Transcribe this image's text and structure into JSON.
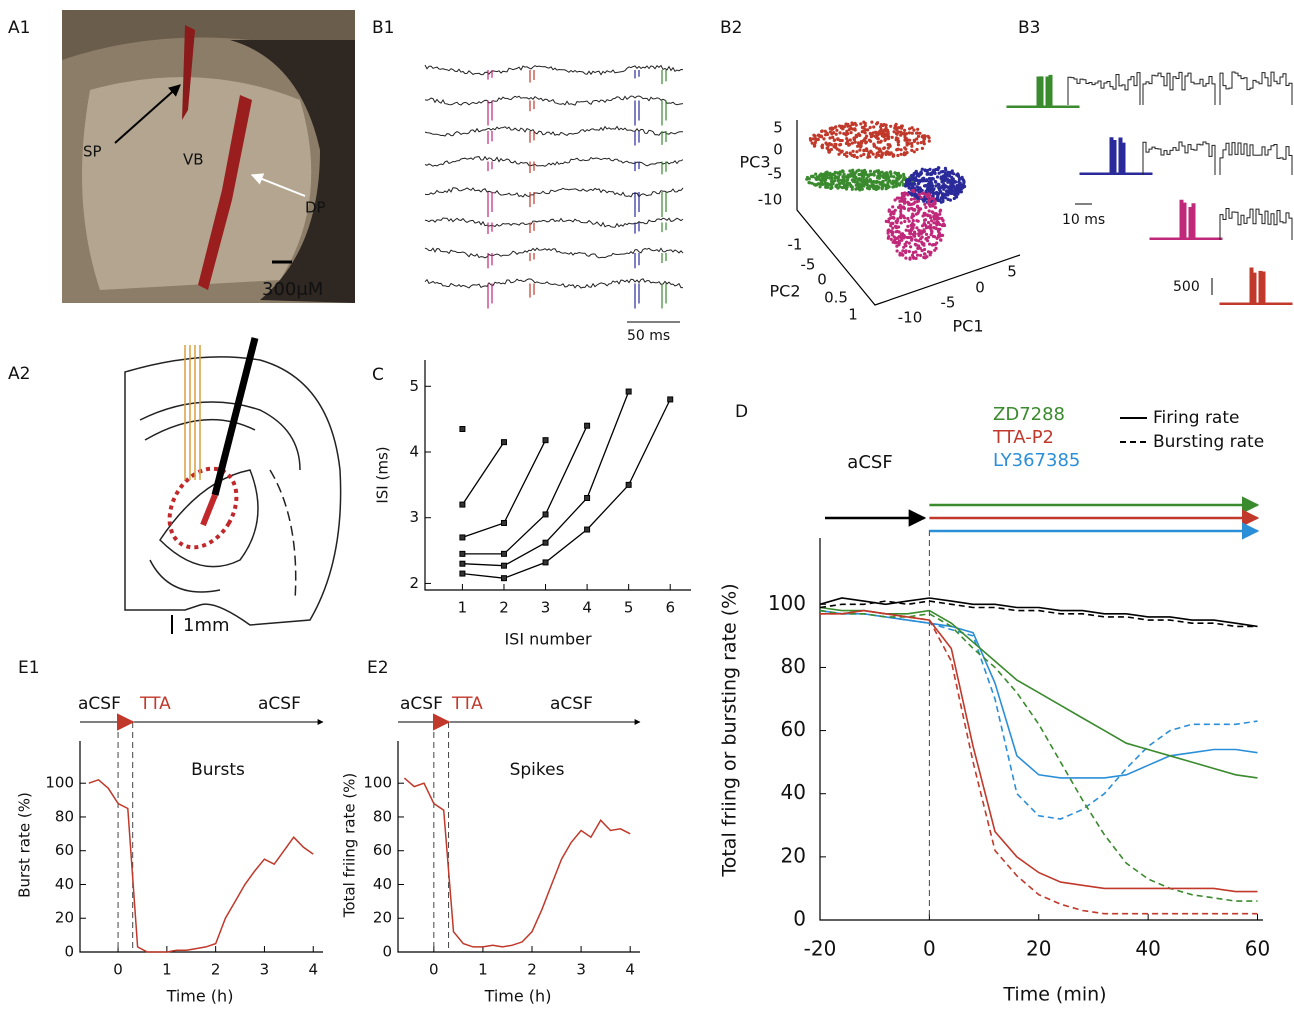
{
  "panels": {
    "a1": {
      "label": "A1",
      "annotations": [
        "SP",
        "VB",
        "DP"
      ],
      "scale": "300μM"
    },
    "a2": {
      "label": "A2",
      "scale": "1mm"
    },
    "b1": {
      "label": "B1",
      "scale": "50 ms"
    },
    "b2": {
      "label": "B2",
      "axis_labels": [
        "PC1",
        "PC2",
        "PC3"
      ],
      "pc1_ticks": [
        "-10",
        "-5",
        "0",
        "5"
      ],
      "pc2_ticks": [
        "-1",
        "-5",
        "0",
        "0.5",
        "1"
      ],
      "pc3_ticks": [
        "5",
        "0",
        "-5",
        "-10"
      ]
    },
    "b3": {
      "label": "B3",
      "time_scale": "10 ms",
      "count_scale": "500"
    }
  },
  "chart_data": [
    {
      "type": "line",
      "label": "C",
      "xlabel": "ISI number",
      "ylabel": "ISI (ms)",
      "color": "#000000",
      "x": [
        1,
        2,
        3,
        4,
        5,
        6
      ],
      "series": [
        {
          "values": [
            4.35,
            null,
            null,
            null,
            null,
            null
          ]
        },
        {
          "values": [
            3.2,
            4.15,
            null,
            null,
            null,
            null
          ]
        },
        {
          "values": [
            2.7,
            2.92,
            4.18,
            null,
            null,
            null
          ]
        },
        {
          "values": [
            2.45,
            2.45,
            3.05,
            4.4,
            null,
            null
          ]
        },
        {
          "values": [
            2.3,
            2.27,
            2.62,
            3.3,
            4.92,
            null
          ]
        },
        {
          "values": [
            2.15,
            2.08,
            2.32,
            2.82,
            3.5,
            4.8
          ]
        }
      ],
      "xlim": [
        0.1,
        6.5
      ],
      "ylim": [
        1.9,
        5.4
      ],
      "xticks": [
        1,
        2,
        3,
        4,
        5,
        6
      ],
      "yticks": [
        2,
        3,
        4,
        5
      ]
    },
    {
      "type": "line",
      "label": "D",
      "xlabel": "Time (min)",
      "ylabel": "Total friing or bursting rate (%)",
      "line_styles": [
        "Firing rate",
        "Bursting rate"
      ],
      "vlines": [
        0
      ],
      "x": [
        -20,
        -16,
        -12,
        -8,
        -4,
        0,
        4,
        8,
        12,
        16,
        20,
        24,
        28,
        32,
        36,
        40,
        44,
        48,
        52,
        56,
        60
      ],
      "series": [
        {
          "name": "LY367385",
          "color": "#2b8fd8",
          "firing": [
            98,
            97,
            97,
            96,
            95,
            94,
            93,
            91,
            75,
            52,
            46,
            45,
            45,
            45,
            46,
            49,
            52,
            53,
            54,
            54,
            53
          ],
          "bursting": [
            98,
            97,
            97,
            96,
            95,
            94,
            92,
            90,
            70,
            40,
            33,
            32,
            35,
            40,
            48,
            55,
            60,
            62,
            62,
            62,
            63
          ]
        },
        {
          "name": "ZD7288",
          "color": "#3a8a2e",
          "firing": [
            99,
            98,
            98,
            97,
            97,
            98,
            94,
            88,
            82,
            76,
            72,
            68,
            64,
            60,
            56,
            54,
            52,
            50,
            48,
            46,
            45
          ],
          "bursting": [
            98,
            97,
            97,
            96,
            96,
            97,
            93,
            86,
            80,
            72,
            62,
            50,
            38,
            27,
            18,
            13,
            10,
            8,
            7,
            6,
            6
          ]
        },
        {
          "name": "TTA-P2",
          "color": "#c0392b",
          "firing": [
            97,
            97,
            98,
            97,
            96,
            95,
            86,
            55,
            28,
            20,
            15,
            12,
            11,
            10,
            10,
            10,
            10,
            10,
            10,
            9,
            9
          ],
          "bursting": [
            97,
            97,
            98,
            97,
            96,
            95,
            82,
            50,
            22,
            14,
            8,
            5,
            3,
            2,
            2,
            2,
            2,
            2,
            2,
            2,
            2
          ]
        },
        {
          "name": "aCSF",
          "color": "#000000",
          "firing": [
            100,
            102,
            101,
            100,
            101,
            102,
            101,
            100,
            100,
            99,
            99,
            98,
            98,
            97,
            97,
            96,
            96,
            95,
            95,
            94,
            93
          ],
          "bursting": [
            99,
            100,
            100,
            101,
            100,
            101,
            100,
            99,
            99,
            98,
            98,
            97,
            97,
            96,
            96,
            95,
            95,
            94,
            94,
            93,
            93
          ]
        }
      ],
      "xlim": [
        -20,
        61
      ],
      "ylim": [
        0,
        121
      ],
      "xticks": [
        -20,
        0,
        20,
        40,
        60
      ],
      "yticks": [
        0,
        20,
        40,
        60,
        80,
        100
      ]
    },
    {
      "type": "line",
      "label": "E1",
      "xlabel": "Time (h)",
      "ylabel": "Burst rate (%)",
      "annotation": "Bursts",
      "phases": [
        "aCSF",
        "TTA",
        "aCSF"
      ],
      "vlines": [
        0,
        0.3
      ],
      "color": "#c0392b",
      "x": [
        -0.6,
        -0.4,
        -0.2,
        0,
        0.2,
        0.4,
        0.6,
        0.8,
        1,
        1.2,
        1.4,
        1.6,
        1.8,
        2,
        2.2,
        2.4,
        2.6,
        2.8,
        3,
        3.2,
        3.4,
        3.6,
        3.8,
        4
      ],
      "values": [
        100,
        102,
        97,
        88,
        85,
        3,
        0,
        0,
        0,
        1,
        1,
        2,
        3,
        5,
        20,
        30,
        40,
        48,
        55,
        52,
        60,
        68,
        62,
        58
      ],
      "xlim": [
        -0.78,
        4.2
      ],
      "ylim": [
        0,
        125
      ],
      "xticks": [
        0,
        1,
        2,
        3,
        4
      ],
      "yticks": [
        0,
        20,
        40,
        60,
        80,
        100
      ]
    },
    {
      "type": "line",
      "label": "E2",
      "xlabel": "Time (h)",
      "ylabel": "Total friing rate (%)",
      "annotation": "Spikes",
      "phases": [
        "aCSF",
        "TTA",
        "aCSF"
      ],
      "vlines": [
        0,
        0.3
      ],
      "color": "#c0392b",
      "x": [
        -0.6,
        -0.4,
        -0.2,
        0,
        0.2,
        0.4,
        0.6,
        0.8,
        1,
        1.2,
        1.4,
        1.6,
        1.8,
        2,
        2.2,
        2.4,
        2.6,
        2.8,
        3,
        3.2,
        3.4,
        3.6,
        3.8,
        4
      ],
      "values": [
        103,
        98,
        100,
        88,
        84,
        12,
        5,
        3,
        3,
        4,
        3,
        4,
        6,
        12,
        25,
        40,
        55,
        65,
        72,
        68,
        78,
        72,
        73,
        70
      ],
      "xlim": [
        -0.73,
        4.2
      ],
      "ylim": [
        0,
        125
      ],
      "xticks": [
        0,
        1,
        2,
        3,
        4
      ],
      "yticks": [
        0,
        20,
        40,
        60,
        80,
        100
      ]
    }
  ]
}
